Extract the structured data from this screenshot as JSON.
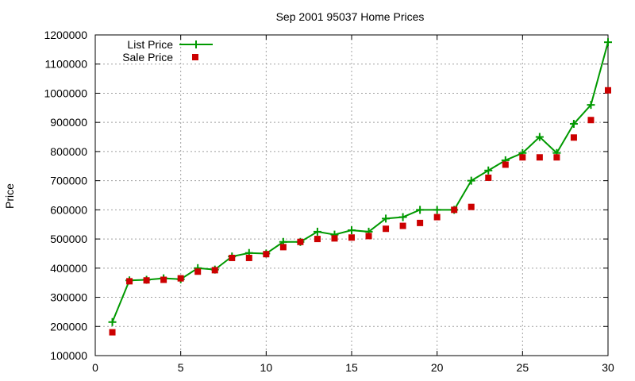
{
  "chart_data": {
    "type": "line",
    "title": "Sep 2001 95037 Home Prices",
    "xlabel": "",
    "ylabel": "Price",
    "xlim": [
      0,
      30
    ],
    "ylim": [
      100000,
      1200000
    ],
    "x_ticks": [
      0,
      5,
      10,
      15,
      20,
      25,
      30
    ],
    "y_ticks": [
      100000,
      200000,
      300000,
      400000,
      500000,
      600000,
      700000,
      800000,
      900000,
      1000000,
      1100000,
      1200000
    ],
    "grid": true,
    "legend_position": "top-left",
    "x": [
      1,
      2,
      3,
      4,
      5,
      6,
      7,
      8,
      9,
      10,
      11,
      12,
      13,
      14,
      15,
      16,
      17,
      18,
      19,
      20,
      21,
      22,
      23,
      24,
      25,
      26,
      27,
      28,
      29,
      30
    ],
    "series": [
      {
        "name": "List Price",
        "style": "linespoints",
        "marker": "plus",
        "color": "#009900",
        "values": [
          215000,
          358000,
          360000,
          365000,
          362000,
          400000,
          395000,
          440000,
          452000,
          450000,
          490000,
          490000,
          525000,
          515000,
          530000,
          525000,
          570000,
          575000,
          600000,
          600000,
          600000,
          700000,
          735000,
          770000,
          795000,
          850000,
          795000,
          895000,
          960000,
          1175000
        ]
      },
      {
        "name": "Sale Price",
        "style": "points",
        "marker": "square",
        "color": "#cc0000",
        "values": [
          180000,
          355000,
          358000,
          360000,
          365000,
          388000,
          393000,
          435000,
          435000,
          448000,
          472000,
          490000,
          500000,
          502000,
          505000,
          510000,
          535000,
          545000,
          555000,
          575000,
          600000,
          610000,
          710000,
          755000,
          780000,
          780000,
          780000,
          848000,
          908000,
          1010000
        ]
      }
    ]
  }
}
